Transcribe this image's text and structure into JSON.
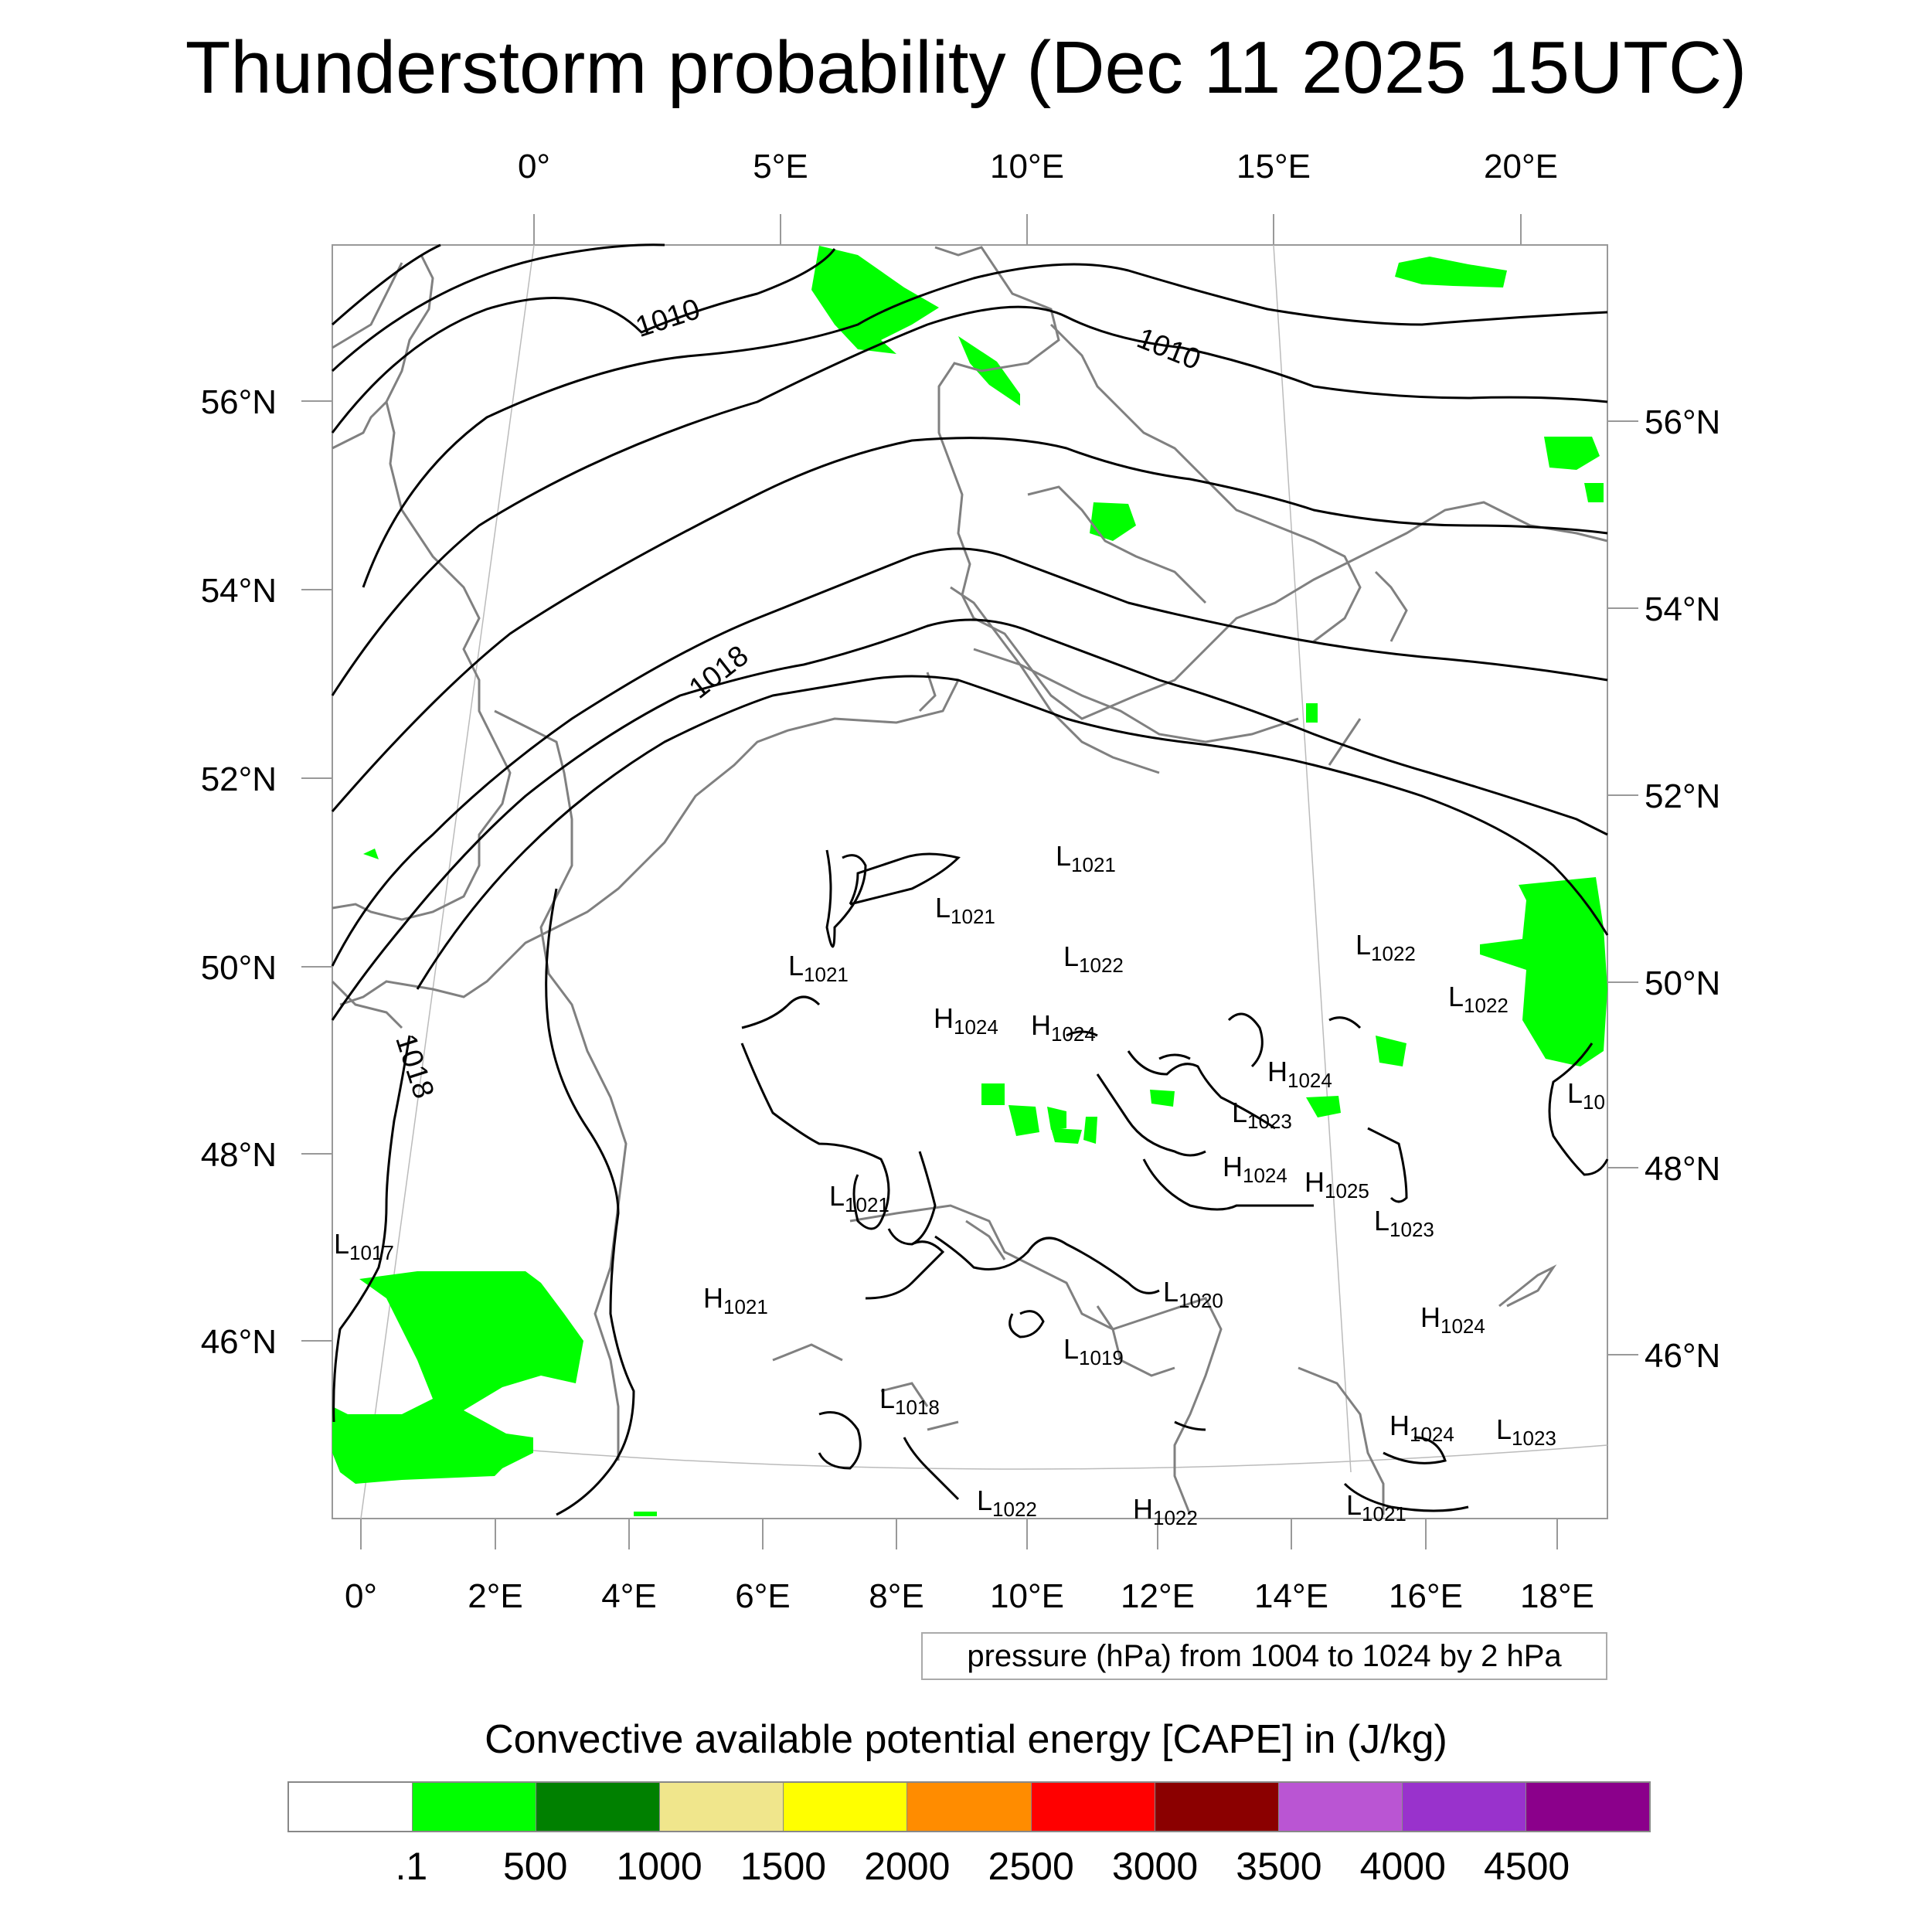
{
  "title": "Thunderstorm probability (Dec 11 2025 15UTC)",
  "top_ticks": [
    "0°",
    "5°E",
    "10°E",
    "15°E",
    "20°E"
  ],
  "bottom_ticks": [
    "0°",
    "2°E",
    "4°E",
    "6°E",
    "8°E",
    "10°E",
    "12°E",
    "14°E",
    "16°E",
    "18°E"
  ],
  "left_ticks": [
    "56°N",
    "54°N",
    "52°N",
    "50°N",
    "48°N",
    "46°N"
  ],
  "right_ticks": [
    "56°N",
    "54°N",
    "52°N",
    "50°N",
    "48°N",
    "46°N"
  ],
  "isobar_labels": [
    "1010",
    "1010",
    "1018",
    "1018"
  ],
  "pressure_centers": [
    {
      "type": "L",
      "value": "1021"
    },
    {
      "type": "L",
      "value": "1021"
    },
    {
      "type": "L",
      "value": "1022"
    },
    {
      "type": "L",
      "value": "1021"
    },
    {
      "type": "L",
      "value": "1022"
    },
    {
      "type": "H",
      "value": "1024"
    },
    {
      "type": "H",
      "value": "1024"
    },
    {
      "type": "L",
      "value": "1022"
    },
    {
      "type": "H",
      "value": "1024"
    },
    {
      "type": "L",
      "value": "1023"
    },
    {
      "type": "H",
      "value": "1024"
    },
    {
      "type": "H",
      "value": "1025"
    },
    {
      "type": "L",
      "value": "1021"
    },
    {
      "type": "L",
      "value": "1023"
    },
    {
      "type": "L",
      "value": "1017"
    },
    {
      "type": "H",
      "value": "1021"
    },
    {
      "type": "L",
      "value": "1020"
    },
    {
      "type": "H",
      "value": "1024"
    },
    {
      "type": "L",
      "value": "1019"
    },
    {
      "type": "L",
      "value": "1018"
    },
    {
      "type": "H",
      "value": "1024"
    },
    {
      "type": "L",
      "value": "1023"
    },
    {
      "type": "L",
      "value": "1022"
    },
    {
      "type": "H",
      "value": "1022"
    },
    {
      "type": "L",
      "value": "1021"
    },
    {
      "type": "L",
      "value": "10"
    }
  ],
  "contour_info": "pressure (hPa) from 1004 to 1024 by 2 hPa",
  "colorbar": {
    "title": "Convective available potential energy [CAPE] in (J/kg)",
    "colors": [
      "#ffffff",
      "#00ff00",
      "#008000",
      "#f0e68c",
      "#ffff00",
      "#ff8c00",
      "#ff0000",
      "#8b0000",
      "#ba55d3",
      "#9932cc",
      "#8b008b"
    ],
    "labels": [
      ".1",
      "500",
      "1000",
      "1500",
      "2000",
      "2500",
      "3000",
      "3500",
      "4000",
      "4500"
    ]
  },
  "colors": {
    "cape_fill": "#00ff00",
    "coastline": "#808080",
    "isobar": "#000000"
  }
}
